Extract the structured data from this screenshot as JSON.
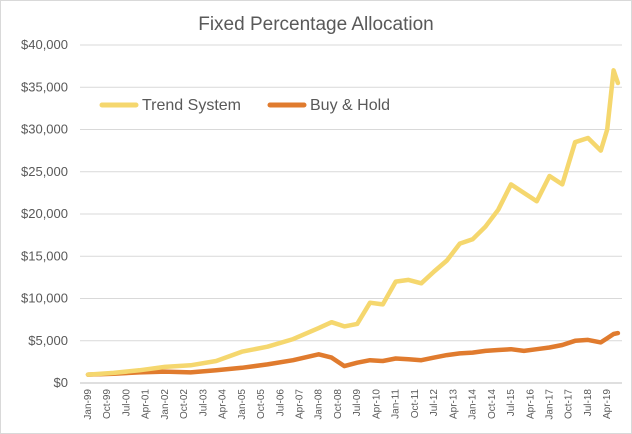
{
  "chart_data": {
    "type": "line",
    "title": "Fixed Percentage Allocation",
    "xlabel": "",
    "ylabel": "",
    "ylim": [
      0,
      40000
    ],
    "y_ticks": [
      {
        "value": 0,
        "label": "$0"
      },
      {
        "value": 5000,
        "label": "$5,000"
      },
      {
        "value": 10000,
        "label": "$10,000"
      },
      {
        "value": 15000,
        "label": "$15,000"
      },
      {
        "value": 20000,
        "label": "$20,000"
      },
      {
        "value": 25000,
        "label": "$25,000"
      },
      {
        "value": 30000,
        "label": "$30,000"
      },
      {
        "value": 35000,
        "label": "$35,000"
      },
      {
        "value": 40000,
        "label": "$40,000"
      }
    ],
    "x_tick_labels": [
      "Jan-99",
      "Oct-99",
      "Jul-00",
      "Apr-01",
      "Jan-02",
      "Oct-02",
      "Jul-03",
      "Apr-04",
      "Jan-05",
      "Oct-05",
      "Jul-06",
      "Apr-07",
      "Jan-08",
      "Oct-08",
      "Jul-09",
      "Apr-10",
      "Jan-11",
      "Oct-11",
      "Jul-12",
      "Apr-13",
      "Jan-14",
      "Oct-14",
      "Jul-15",
      "Apr-16",
      "Jan-17",
      "Oct-17",
      "Jul-18",
      "Apr-19"
    ],
    "grid": true,
    "legend_position": "top-left",
    "series": [
      {
        "name": "Trend System",
        "color": "#F5D76E",
        "points": [
          {
            "x": "Jan-99",
            "y": 1000
          },
          {
            "x": "Jan-00",
            "y": 1200
          },
          {
            "x": "Jan-01",
            "y": 1500
          },
          {
            "x": "Jan-02",
            "y": 1900
          },
          {
            "x": "Jan-03",
            "y": 2100
          },
          {
            "x": "Jan-04",
            "y": 2600
          },
          {
            "x": "Jan-05",
            "y": 3700
          },
          {
            "x": "Jan-06",
            "y": 4300
          },
          {
            "x": "Jan-07",
            "y": 5200
          },
          {
            "x": "Jan-08",
            "y": 6500
          },
          {
            "x": "Jul-08",
            "y": 7200
          },
          {
            "x": "Jan-09",
            "y": 6700
          },
          {
            "x": "Jul-09",
            "y": 7000
          },
          {
            "x": "Jan-10",
            "y": 9500
          },
          {
            "x": "Jul-10",
            "y": 9300
          },
          {
            "x": "Jan-11",
            "y": 12000
          },
          {
            "x": "Jul-11",
            "y": 12200
          },
          {
            "x": "Jan-12",
            "y": 11800
          },
          {
            "x": "Jul-12",
            "y": 13200
          },
          {
            "x": "Jan-13",
            "y": 14500
          },
          {
            "x": "Jul-13",
            "y": 16500
          },
          {
            "x": "Jan-14",
            "y": 17000
          },
          {
            "x": "Jul-14",
            "y": 18500
          },
          {
            "x": "Jan-15",
            "y": 20500
          },
          {
            "x": "Jul-15",
            "y": 23500
          },
          {
            "x": "Jan-16",
            "y": 22500
          },
          {
            "x": "Jul-16",
            "y": 21500
          },
          {
            "x": "Jan-17",
            "y": 24500
          },
          {
            "x": "Jul-17",
            "y": 23500
          },
          {
            "x": "Jan-18",
            "y": 28500
          },
          {
            "x": "Jul-18",
            "y": 29000
          },
          {
            "x": "Jan-19",
            "y": 27500
          },
          {
            "x": "Apr-19",
            "y": 30000
          },
          {
            "x": "Jul-19",
            "y": 37000
          },
          {
            "x": "Sep-19",
            "y": 35500
          }
        ]
      },
      {
        "name": "Buy & Hold",
        "color": "#E07B2E",
        "points": [
          {
            "x": "Jan-99",
            "y": 1000
          },
          {
            "x": "Jan-00",
            "y": 1100
          },
          {
            "x": "Jan-01",
            "y": 1250
          },
          {
            "x": "Jan-02",
            "y": 1350
          },
          {
            "x": "Jan-03",
            "y": 1250
          },
          {
            "x": "Jan-04",
            "y": 1500
          },
          {
            "x": "Jan-05",
            "y": 1800
          },
          {
            "x": "Jan-06",
            "y": 2200
          },
          {
            "x": "Jan-07",
            "y": 2700
          },
          {
            "x": "Jan-08",
            "y": 3400
          },
          {
            "x": "Jul-08",
            "y": 3000
          },
          {
            "x": "Jan-09",
            "y": 2000
          },
          {
            "x": "Jul-09",
            "y": 2400
          },
          {
            "x": "Jan-10",
            "y": 2700
          },
          {
            "x": "Jul-10",
            "y": 2600
          },
          {
            "x": "Jan-11",
            "y": 2900
          },
          {
            "x": "Jul-11",
            "y": 2800
          },
          {
            "x": "Jan-12",
            "y": 2700
          },
          {
            "x": "Jul-12",
            "y": 3000
          },
          {
            "x": "Jan-13",
            "y": 3300
          },
          {
            "x": "Jul-13",
            "y": 3500
          },
          {
            "x": "Jan-14",
            "y": 3600
          },
          {
            "x": "Jul-14",
            "y": 3800
          },
          {
            "x": "Jan-15",
            "y": 3900
          },
          {
            "x": "Jul-15",
            "y": 4000
          },
          {
            "x": "Jan-16",
            "y": 3800
          },
          {
            "x": "Jul-16",
            "y": 4000
          },
          {
            "x": "Jan-17",
            "y": 4200
          },
          {
            "x": "Jul-17",
            "y": 4500
          },
          {
            "x": "Jan-18",
            "y": 5000
          },
          {
            "x": "Jul-18",
            "y": 5100
          },
          {
            "x": "Jan-19",
            "y": 4800
          },
          {
            "x": "Apr-19",
            "y": 5300
          },
          {
            "x": "Jul-19",
            "y": 5800
          },
          {
            "x": "Sep-19",
            "y": 5900
          }
        ]
      }
    ]
  }
}
